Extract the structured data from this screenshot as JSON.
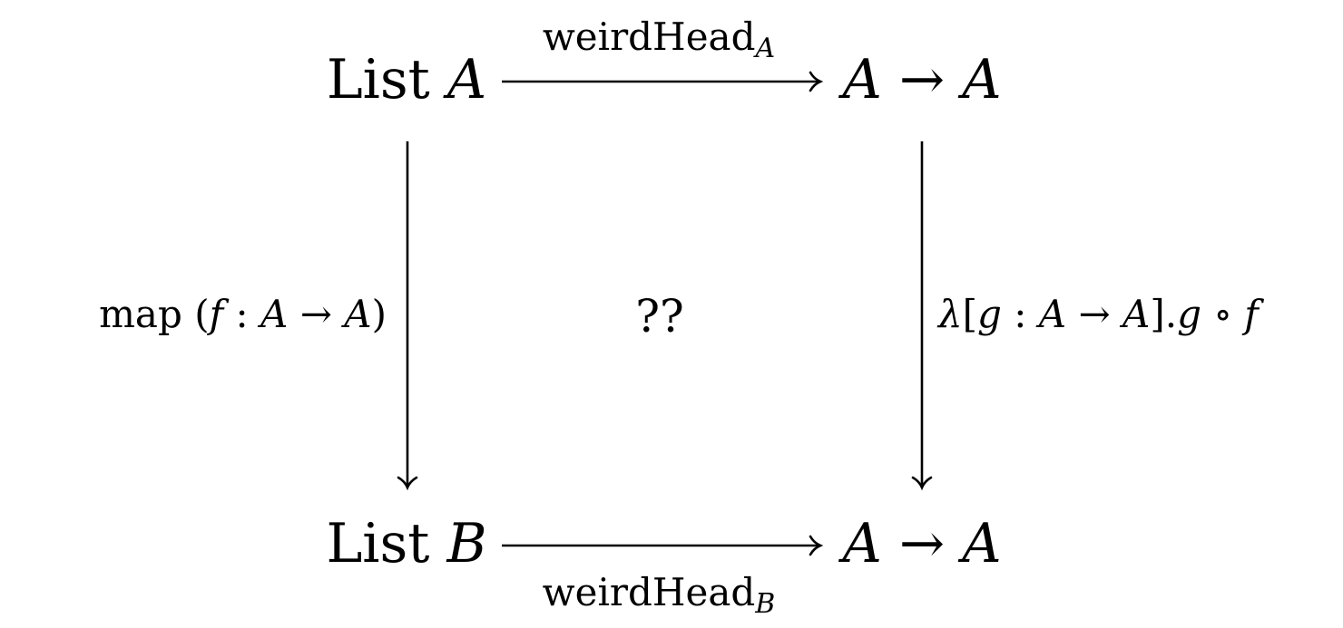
{
  "nodes": {
    "top_left": {
      "word": "List",
      "var": "A"
    },
    "top_right": {
      "left": "A",
      "arrow": "→",
      "right": "A"
    },
    "bottom_left": {
      "word": "List",
      "var": "B"
    },
    "bottom_right": {
      "left": "A",
      "arrow": "→",
      "right": "A"
    }
  },
  "arrows": {
    "top": {
      "name": "weirdHead",
      "subscript": "A"
    },
    "bottom": {
      "name": "weirdHead",
      "subscript": "B"
    },
    "left": {
      "prefix": "map (",
      "f": "f",
      "colon": " : ",
      "a1": "A",
      "arrow": " → ",
      "a2": "A",
      "suffix": ")"
    },
    "right": {
      "lambda": "λ",
      "open": "[",
      "g1": "g",
      "colon": " : ",
      "a1": "A",
      "arrow": " → ",
      "a2": "A",
      "close": "].",
      "g2": "g",
      "compose": " ∘ ",
      "f": "f"
    }
  },
  "center": {
    "label": "??"
  }
}
